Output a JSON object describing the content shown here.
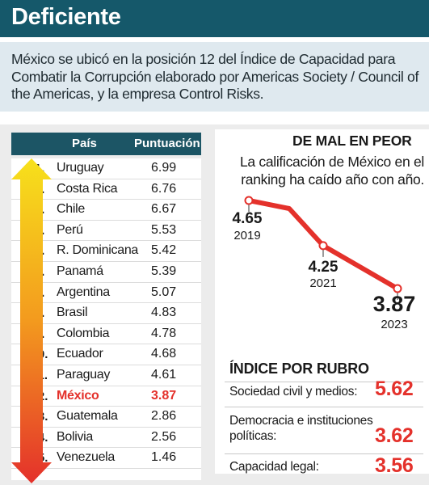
{
  "header": {
    "title": "Deficiente"
  },
  "intro": {
    "text": "México se ubicó en la posición 12 del Índice de Capacidad para Combatir la Corrupción elaborado por Americas Society / Council of the Americas, y la empresa Control Risks."
  },
  "chart_data": [
    {
      "type": "table",
      "columns": [
        "País",
        "Puntuación"
      ],
      "rows": [
        {
          "rank": "1.",
          "country": "Uruguay",
          "score": "6.99"
        },
        {
          "rank": "2.",
          "country": "Costa Rica",
          "score": "6.76"
        },
        {
          "rank": "3.",
          "country": "Chile",
          "score": "6.67"
        },
        {
          "rank": "4.",
          "country": "Perú",
          "score": "5.53"
        },
        {
          "rank": "5.",
          "country": "R. Dominicana",
          "score": "5.42"
        },
        {
          "rank": "6.",
          "country": "Panamá",
          "score": "5.39"
        },
        {
          "rank": "7.",
          "country": "Argentina",
          "score": "5.07"
        },
        {
          "rank": "8.",
          "country": "Brasil",
          "score": "4.83"
        },
        {
          "rank": "9.",
          "country": "Colombia",
          "score": "4.78"
        },
        {
          "rank": "10.",
          "country": "Ecuador",
          "score": "4.68"
        },
        {
          "rank": "11.",
          "country": "Paraguay",
          "score": "4.61"
        },
        {
          "rank": "12.",
          "country": "México",
          "score": "3.87",
          "highlight": true
        },
        {
          "rank": "13.",
          "country": "Guatemala",
          "score": "2.86"
        },
        {
          "rank": "14.",
          "country": "Bolivia",
          "score": "2.56"
        },
        {
          "rank": "15.",
          "country": "Venezuela",
          "score": "1.46"
        }
      ],
      "highlight_color": "#e4312b",
      "arrow_colors": [
        "#f7e11b",
        "#f39a1e",
        "#e4312b"
      ]
    },
    {
      "type": "line",
      "title": "DE MAL EN PEOR",
      "subtitle": "La calificación de México en el ranking ha caído año con año.",
      "points": [
        {
          "x": "2019",
          "y": 4.65,
          "label": "4.65"
        },
        {
          "x": "2021",
          "y": 4.25,
          "label": "4.25"
        },
        {
          "x": "2023",
          "y": 3.87,
          "label": "3.87"
        }
      ],
      "line_color": "#e4312b"
    },
    {
      "type": "table",
      "title": "ÍNDICE POR RUBRO",
      "rows": [
        {
          "label": "Sociedad civil y medios:",
          "value": "5.62"
        },
        {
          "label": "Democracia e instituciones políticas:",
          "value": "3.62"
        },
        {
          "label": "Capacidad legal:",
          "value": "3.56"
        }
      ],
      "value_color": "#e4312b"
    }
  ]
}
